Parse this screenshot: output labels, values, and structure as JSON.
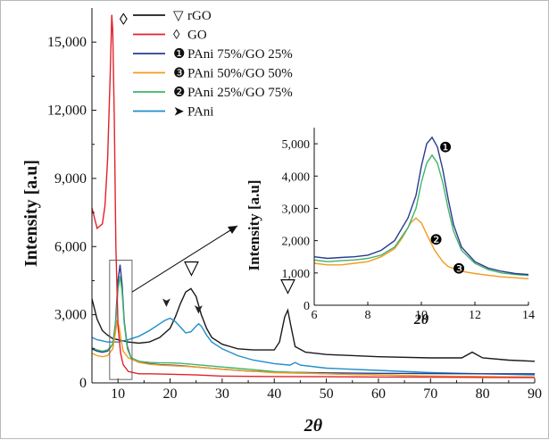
{
  "chart_data": [
    {
      "type": "line",
      "xlabel": "2θ",
      "ylabel": "Intensity [a.u]",
      "xlim": [
        5,
        90
      ],
      "ylim": [
        0,
        16500
      ],
      "xticks": [
        "10",
        "20",
        "30",
        "40",
        "50",
        "60",
        "70",
        "80",
        "90"
      ],
      "yticks": [
        "0",
        "3,000",
        "6,000",
        "9,000",
        "12,000",
        "15,000"
      ],
      "legend_position": "top-left",
      "series": [
        {
          "name": "rGO",
          "marker": "▽",
          "color": "#1a1a1a",
          "x": [
            5,
            6,
            7,
            8,
            9,
            10,
            11,
            12,
            14,
            16,
            18,
            20,
            21,
            22,
            23,
            24,
            25,
            26,
            27,
            28,
            30,
            33,
            36,
            40,
            41,
            42,
            42.6,
            43.2,
            44,
            46,
            50,
            60,
            70,
            76,
            78,
            80,
            85,
            90
          ],
          "y": [
            3700,
            2800,
            2300,
            2100,
            1950,
            1900,
            1850,
            1800,
            1750,
            1800,
            2000,
            2400,
            2900,
            3500,
            4000,
            4150,
            3800,
            3000,
            2400,
            2000,
            1700,
            1500,
            1450,
            1450,
            1800,
            2900,
            3200,
            2500,
            1600,
            1350,
            1250,
            1150,
            1100,
            1100,
            1350,
            1100,
            1000,
            950
          ]
        },
        {
          "name": "GO",
          "marker": "◊",
          "color": "#e3212b",
          "x": [
            5,
            6,
            7,
            7.5,
            8,
            8.5,
            8.8,
            9,
            9.3,
            9.6,
            10,
            10.5,
            11,
            12,
            14,
            16,
            20,
            25,
            30,
            40,
            50,
            60,
            70,
            80,
            90
          ],
          "y": [
            7700,
            6800,
            7000,
            7800,
            9800,
            13500,
            16200,
            15500,
            11500,
            6000,
            2500,
            1300,
            800,
            500,
            400,
            400,
            380,
            350,
            300,
            280,
            270,
            260,
            250,
            240,
            230
          ]
        },
        {
          "name": "PAni 75%/GO 25%",
          "marker": "❶",
          "color": "#2b3a8f",
          "x": [
            5,
            6,
            7,
            8,
            9,
            9.5,
            10,
            10.4,
            10.8,
            11.2,
            11.8,
            12.5,
            14,
            16,
            18,
            20,
            22,
            25,
            30,
            35,
            40,
            45,
            50,
            60,
            70,
            80,
            90
          ],
          "y": [
            1500,
            1400,
            1350,
            1400,
            1700,
            2600,
            4500,
            5200,
            4300,
            2700,
            1600,
            1100,
            950,
            850,
            800,
            780,
            760,
            700,
            600,
            520,
            480,
            460,
            440,
            420,
            410,
            400,
            400
          ]
        },
        {
          "name": "PAni 50%/GO 50%",
          "marker": "❸",
          "color": "#f39a1e",
          "x": [
            5,
            6,
            7,
            8,
            9,
            9.5,
            9.8,
            10.2,
            10.6,
            11,
            12,
            13,
            14,
            16,
            18,
            20,
            22,
            25,
            30,
            40,
            50,
            60,
            70,
            80,
            90
          ],
          "y": [
            1300,
            1200,
            1150,
            1200,
            1500,
            2200,
            2700,
            2500,
            1900,
            1400,
            1100,
            1000,
            900,
            820,
            780,
            760,
            740,
            700,
            600,
            450,
            400,
            350,
            300,
            280,
            260
          ]
        },
        {
          "name": "PAni 25%/GO 75%",
          "marker": "❷",
          "color": "#3fb56b",
          "x": [
            5,
            6,
            7,
            8,
            9,
            9.5,
            10,
            10.4,
            10.8,
            11.2,
            11.8,
            12.5,
            14,
            16,
            18,
            20,
            22,
            25,
            30,
            35,
            40,
            50,
            60,
            70,
            80,
            90
          ],
          "y": [
            1550,
            1450,
            1400,
            1450,
            1700,
            2500,
            4100,
            4700,
            4000,
            2600,
            1500,
            1100,
            950,
            900,
            880,
            880,
            860,
            800,
            700,
            600,
            500,
            400,
            350,
            300,
            270,
            260
          ]
        },
        {
          "name": "PAni",
          "marker": "➤",
          "color": "#1f8ec9",
          "x": [
            5,
            6,
            8,
            10,
            12,
            14,
            16,
            18,
            19,
            20,
            21,
            22,
            23,
            24,
            25,
            25.5,
            26,
            27,
            28,
            30,
            33,
            36,
            40,
            43,
            44,
            45,
            50,
            60,
            70,
            80,
            90
          ],
          "y": [
            2000,
            1900,
            1800,
            1800,
            1900,
            2050,
            2300,
            2600,
            2750,
            2850,
            2700,
            2450,
            2200,
            2250,
            2500,
            2600,
            2500,
            2100,
            1800,
            1500,
            1200,
            1000,
            850,
            780,
            900,
            780,
            650,
            550,
            450,
            400,
            350
          ]
        }
      ]
    },
    {
      "type": "line",
      "xlabel": "2θ",
      "ylabel": "Intensity [a.u]",
      "xlim": [
        6,
        14
      ],
      "ylim": [
        0,
        5500
      ],
      "xticks": [
        "6",
        "8",
        "10",
        "12",
        "14"
      ],
      "yticks": [
        "0",
        "1,000",
        "2,000",
        "3,000",
        "4,000",
        "5,000"
      ],
      "series": [
        {
          "name": "PAni 75%/GO 25%",
          "marker": "❶",
          "color": "#2b3a8f",
          "x": [
            6,
            6.5,
            7,
            7.5,
            8,
            8.5,
            9,
            9.5,
            9.8,
            10,
            10.2,
            10.4,
            10.6,
            10.8,
            11,
            11.2,
            11.5,
            12,
            12.5,
            13,
            13.5,
            14
          ],
          "y": [
            1500,
            1450,
            1480,
            1500,
            1550,
            1700,
            2000,
            2700,
            3400,
            4300,
            5000,
            5200,
            4900,
            4200,
            3300,
            2500,
            1800,
            1350,
            1150,
            1050,
            980,
            950
          ]
        },
        {
          "name": "PAni 25%/GO 75%",
          "marker": "❷",
          "color": "#3fb56b",
          "x": [
            6,
            6.5,
            7,
            7.5,
            8,
            8.5,
            9,
            9.5,
            9.8,
            10,
            10.2,
            10.4,
            10.6,
            10.8,
            11,
            11.2,
            11.5,
            12,
            12.5,
            13,
            13.5,
            14
          ],
          "y": [
            1400,
            1350,
            1380,
            1400,
            1450,
            1550,
            1800,
            2400,
            3000,
            3800,
            4400,
            4650,
            4400,
            3800,
            3000,
            2300,
            1700,
            1300,
            1100,
            1000,
            950,
            920
          ]
        },
        {
          "name": "PAni 50%/GO 50%",
          "marker": "❸",
          "color": "#f39a1e",
          "x": [
            6,
            6.5,
            7,
            7.5,
            8,
            8.5,
            9,
            9.3,
            9.6,
            9.8,
            10,
            10.2,
            10.5,
            10.8,
            11,
            11.5,
            12,
            12.5,
            13,
            13.5,
            14
          ],
          "y": [
            1300,
            1250,
            1250,
            1300,
            1350,
            1500,
            1750,
            2100,
            2550,
            2700,
            2550,
            2200,
            1700,
            1350,
            1200,
            1050,
            980,
            930,
            880,
            850,
            820
          ]
        }
      ]
    }
  ],
  "markers": {
    "triangle": "▽",
    "diamond": "◊",
    "n1": "❶",
    "n2": "❷",
    "n3": "❸",
    "pani": "➤"
  },
  "colors": {
    "axis": "#111111",
    "box": "#555555",
    "arrow": "#111111"
  }
}
